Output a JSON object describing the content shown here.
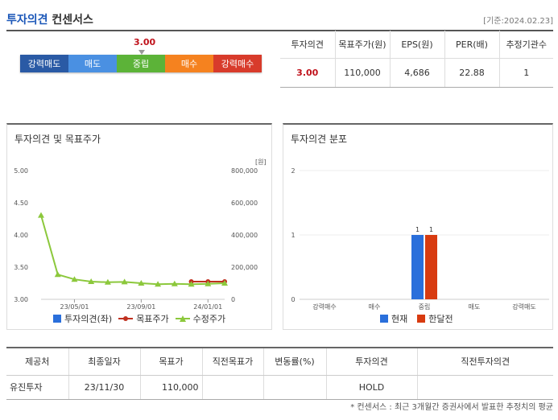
{
  "header": {
    "title_blue": "투자의견",
    "title_dark": "컨센서스",
    "date": "[기준:2024.02.23]"
  },
  "scale": {
    "value": "3.00",
    "level": 3.0,
    "segments": [
      {
        "label": "강력매도",
        "color": "#2a5aa5"
      },
      {
        "label": "매도",
        "color": "#4a90e2"
      },
      {
        "label": "중립",
        "color": "#5cb338"
      },
      {
        "label": "매수",
        "color": "#f5821f"
      },
      {
        "label": "강력매수",
        "color": "#d83b2b"
      }
    ]
  },
  "summary": {
    "headers": [
      "투자의견",
      "목표주가(원)",
      "EPS(원)",
      "PER(배)",
      "추정기관수"
    ],
    "values": [
      "3.00",
      "110,000",
      "4,686",
      "22.88",
      "1"
    ]
  },
  "panel1": {
    "title": "투자의견 및 목표주가",
    "legend": [
      "투자의견(좌)",
      "목표주가",
      "수정주가"
    ]
  },
  "panel2": {
    "title": "투자의견 분포",
    "legend": [
      "현재",
      "한달전"
    ]
  },
  "chart_data": [
    {
      "type": "line",
      "x": [
        "23/03",
        "23/04",
        "23/05",
        "23/06",
        "23/07",
        "23/08",
        "23/09",
        "23/10",
        "23/11",
        "23/12",
        "24/01",
        "24/02"
      ],
      "xticks": [
        "23/05/01",
        "23/09/01",
        "24/01/01"
      ],
      "yticks_left": [
        "5.00",
        "4.50",
        "4.00",
        "3.50",
        "3.00"
      ],
      "yticks_right": [
        "800,000",
        "600,000",
        "400,000",
        "200,000",
        "0"
      ],
      "unit_right": "[원]",
      "ylim_left": [
        3.0,
        5.0
      ],
      "ylim_right": [
        0,
        800000
      ],
      "series": [
        {
          "name": "투자의견(좌)",
          "values": [
            null,
            null,
            null,
            null,
            null,
            null,
            null,
            null,
            null,
            null,
            null,
            null
          ],
          "color": "#2a6fdb"
        },
        {
          "name": "목표주가",
          "values": [
            null,
            null,
            null,
            null,
            null,
            null,
            null,
            null,
            null,
            110000,
            110000,
            110000
          ],
          "color": "#c0301f"
        },
        {
          "name": "수정주가",
          "values": [
            522000,
            154000,
            124000,
            110000,
            106000,
            108000,
            100000,
            94000,
            96000,
            94000,
            96000,
            100000
          ],
          "color": "#8cc83c"
        }
      ]
    },
    {
      "type": "bar",
      "categories": [
        "강력매수",
        "매수",
        "중립",
        "매도",
        "강력매도"
      ],
      "ylim": [
        0,
        2
      ],
      "yticks": [
        "2",
        "1",
        "0"
      ],
      "series": [
        {
          "name": "현재",
          "values": [
            0,
            0,
            1,
            0,
            0
          ],
          "color": "#2a6fdb"
        },
        {
          "name": "한달전",
          "values": [
            0,
            0,
            1,
            0,
            0
          ],
          "color": "#d83b10"
        }
      ]
    }
  ],
  "detail": {
    "headers": [
      "제공처",
      "최종일자",
      "목표가",
      "직전목표가",
      "변동률(%)",
      "투자의견",
      "직전투자의견"
    ],
    "rows": [
      [
        "유진투자",
        "23/11/30",
        "110,000",
        "",
        "",
        "HOLD",
        ""
      ]
    ]
  },
  "note": "* 컨센서스 : 최근 3개월간 증권사에서 발표한 추정치의 평균"
}
